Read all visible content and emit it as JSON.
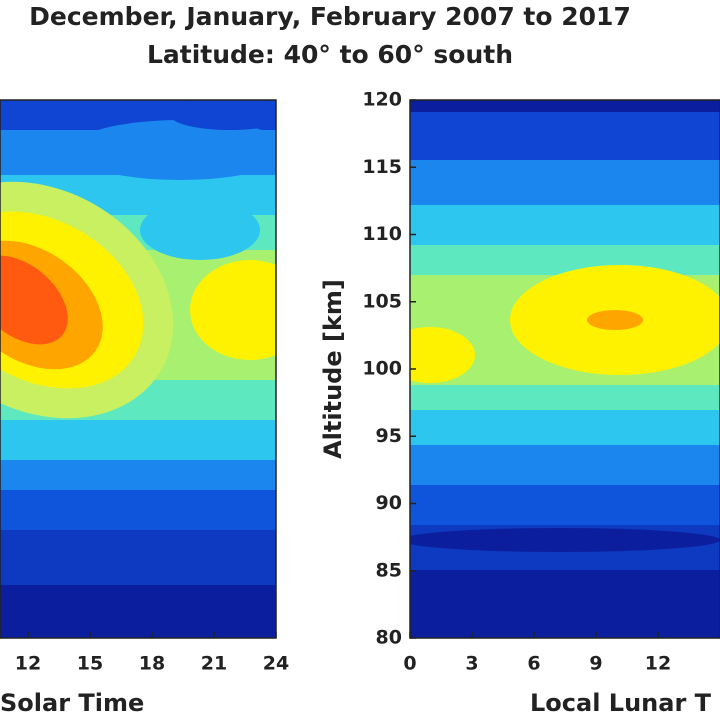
{
  "chart_data": [
    {
      "type": "contour",
      "title": "December, January, February 2007 to 2017",
      "subtitle": "Latitude: 40° to 60° south",
      "x_label": "Solar Time",
      "xlim": [
        0,
        24
      ],
      "xticks": [
        12,
        15,
        18,
        21,
        24
      ],
      "ylim": [
        80,
        120
      ]
    },
    {
      "type": "contour",
      "x_label": "Local Lunar T",
      "y_label": "Altitude [km]",
      "xlim": [
        0,
        24
      ],
      "xticks": [
        0,
        3,
        6,
        9,
        12
      ],
      "ylim": [
        80,
        120
      ],
      "yticks": [
        80,
        85,
        90,
        95,
        100,
        105,
        110,
        115,
        120
      ]
    }
  ]
}
